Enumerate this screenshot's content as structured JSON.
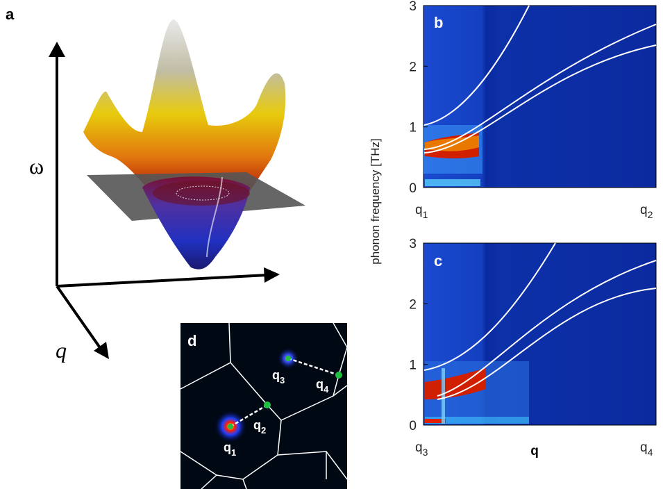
{
  "panel_a": {
    "label": "a",
    "axis_omega": "ω",
    "axis_q": "q"
  },
  "panel_b": {
    "label": "b",
    "yticks": [
      0,
      1,
      2,
      3
    ],
    "x_start": {
      "base": "q",
      "sub": "1"
    },
    "x_end": {
      "base": "q",
      "sub": "2"
    }
  },
  "y_axis_label": "phonon frequency [THz]",
  "panel_c": {
    "label": "c",
    "yticks": [
      0,
      1,
      2,
      3
    ],
    "x_start": {
      "base": "q",
      "sub": "3"
    },
    "x_end": {
      "base": "q",
      "sub": "4"
    },
    "x_axis_label": "q"
  },
  "panel_d": {
    "label": "d",
    "points": [
      {
        "base": "q",
        "sub": "1"
      },
      {
        "base": "q",
        "sub": "2"
      },
      {
        "base": "q",
        "sub": "3"
      },
      {
        "base": "q",
        "sub": "4"
      }
    ]
  }
}
